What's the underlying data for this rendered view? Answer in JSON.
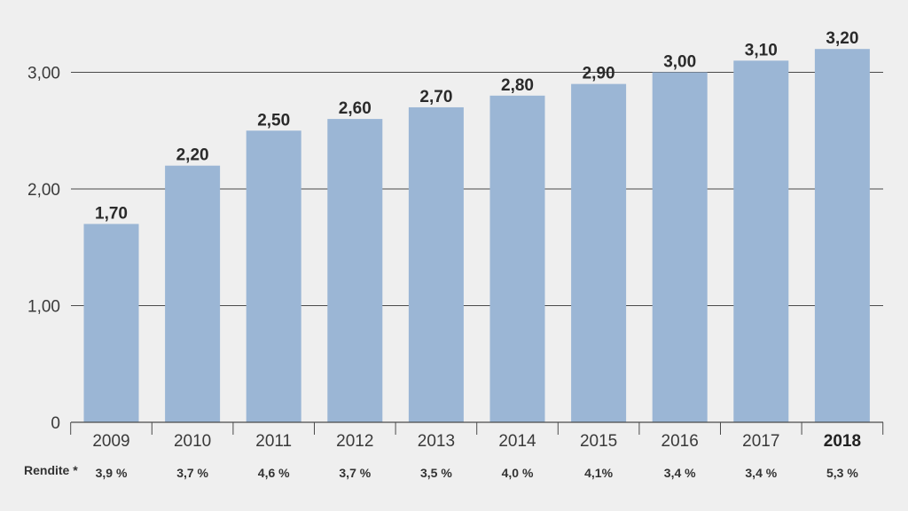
{
  "chart_data": {
    "type": "bar",
    "categories": [
      "2009",
      "2010",
      "2011",
      "2012",
      "2013",
      "2014",
      "2015",
      "2016",
      "2017",
      "2018"
    ],
    "values": [
      1.7,
      2.2,
      2.5,
      2.6,
      2.7,
      2.8,
      2.9,
      3.0,
      3.1,
      3.2
    ],
    "value_labels": [
      "1,70",
      "2,20",
      "2,50",
      "2,60",
      "2,70",
      "2,80",
      "2,90",
      "3,00",
      "3,10",
      "3,20"
    ],
    "ylim": [
      0,
      3.2
    ],
    "yticks": [
      0,
      1,
      2,
      3
    ],
    "ytick_labels": [
      "0",
      "1,00",
      "2,00",
      "3,00"
    ],
    "highlight_category": "2018",
    "bar_color": "#9bb6d5",
    "grid": true,
    "yield_row": {
      "label": "Rendite *",
      "values": [
        "3,9 %",
        "3,7 %",
        "4,6 %",
        "3,7 %",
        "3,5 %",
        "4,0 %",
        "4,1%",
        "3,4 %",
        "3,4 %",
        "5,3 %"
      ]
    }
  }
}
